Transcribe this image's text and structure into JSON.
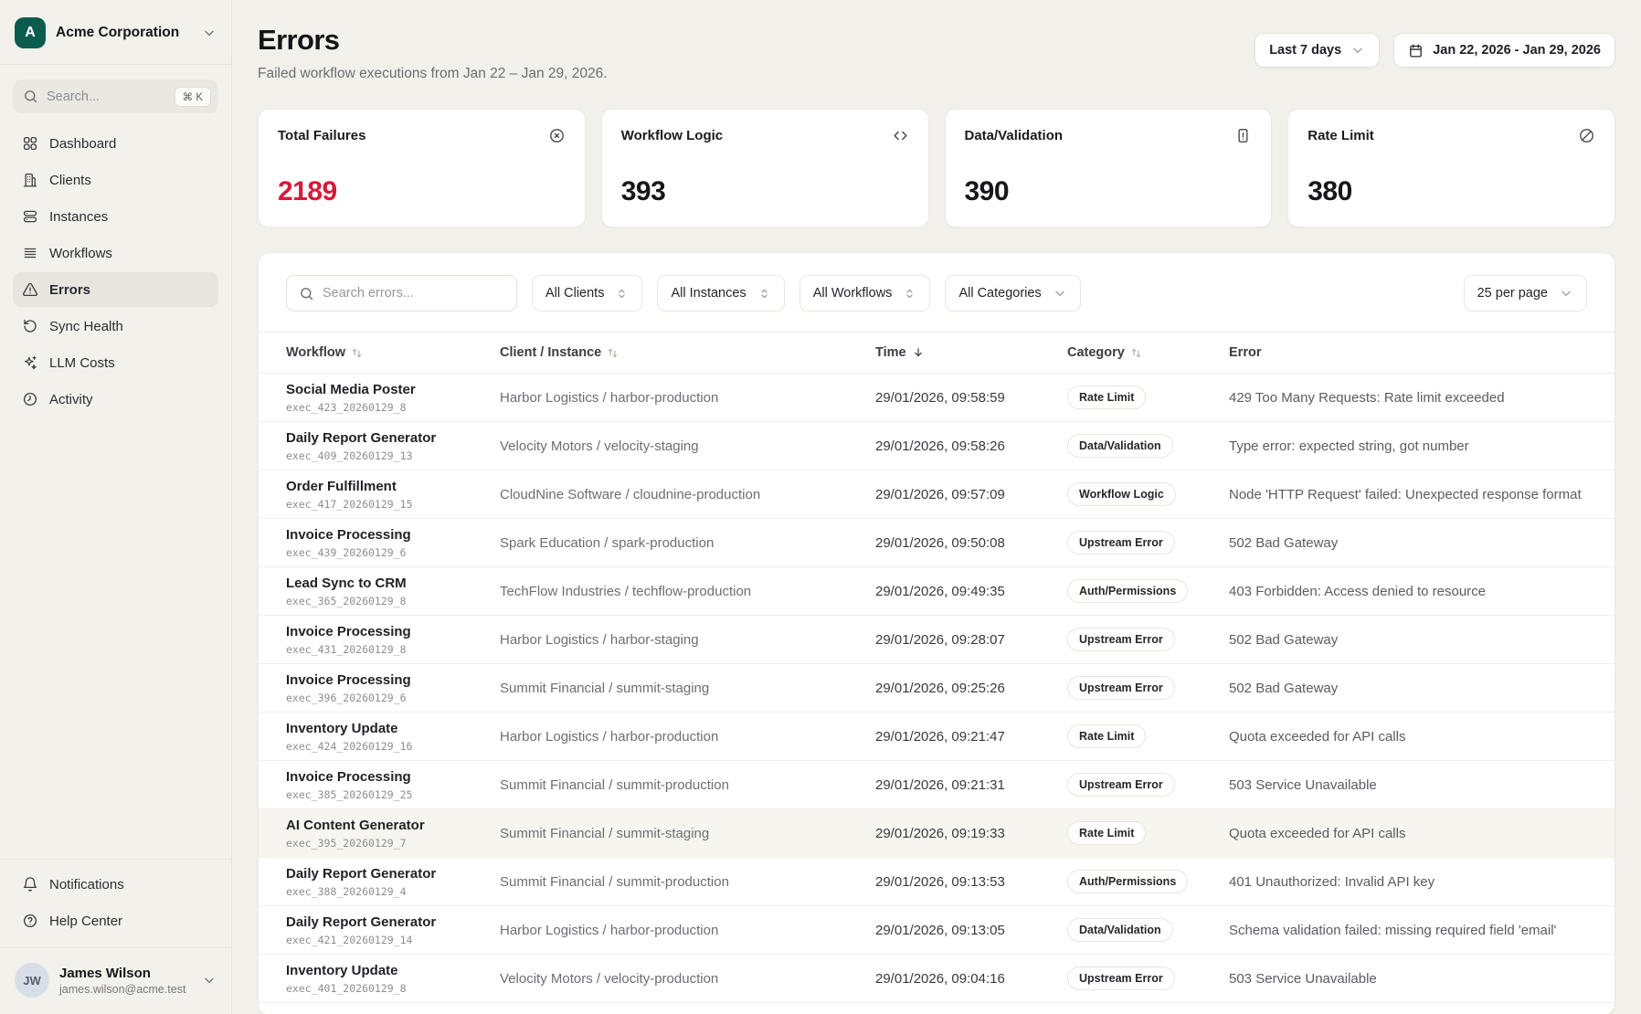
{
  "sidebar": {
    "org": {
      "initial": "A",
      "name": "Acme Corporation"
    },
    "search": {
      "placeholder": "Search...",
      "shortcut": "⌘ K"
    },
    "nav": [
      {
        "label": "Dashboard",
        "icon": "dashboard",
        "active": false
      },
      {
        "label": "Clients",
        "icon": "clients",
        "active": false
      },
      {
        "label": "Instances",
        "icon": "instances",
        "active": false
      },
      {
        "label": "Workflows",
        "icon": "workflows",
        "active": false
      },
      {
        "label": "Errors",
        "icon": "errors",
        "active": true
      },
      {
        "label": "Sync Health",
        "icon": "sync",
        "active": false
      },
      {
        "label": "LLM Costs",
        "icon": "llm",
        "active": false
      },
      {
        "label": "Activity",
        "icon": "activity",
        "active": false
      }
    ],
    "footer": [
      {
        "label": "Notifications",
        "icon": "bell"
      },
      {
        "label": "Help Center",
        "icon": "help"
      }
    ],
    "user": {
      "initials": "JW",
      "name": "James Wilson",
      "email": "james.wilson@acme.test"
    }
  },
  "header": {
    "title": "Errors",
    "subtitle": "Failed workflow executions from Jan 22 – Jan 29, 2026.",
    "range_button": "Last 7 days",
    "date_button": "Jan 22, 2026 - Jan 29, 2026"
  },
  "stats": [
    {
      "label": "Total Failures",
      "value": "2189",
      "icon": "x-circle",
      "accent": "#d61a3b"
    },
    {
      "label": "Workflow Logic",
      "value": "393",
      "icon": "code",
      "accent": null
    },
    {
      "label": "Data/Validation",
      "value": "390",
      "icon": "file-alert",
      "accent": null
    },
    {
      "label": "Rate Limit",
      "value": "380",
      "icon": "slash-circle",
      "accent": null
    }
  ],
  "filters": {
    "search_placeholder": "Search errors...",
    "selects": [
      {
        "label": "All Clients",
        "chevron": "both"
      },
      {
        "label": "All Instances",
        "chevron": "both"
      },
      {
        "label": "All Workflows",
        "chevron": "both"
      },
      {
        "label": "All Categories",
        "chevron": "down"
      }
    ],
    "per_page": "25 per page"
  },
  "table": {
    "columns": [
      {
        "label": "Workflow",
        "sort": "both"
      },
      {
        "label": "Client / Instance",
        "sort": "both"
      },
      {
        "label": "Time",
        "sort": "down"
      },
      {
        "label": "Category",
        "sort": "both"
      },
      {
        "label": "Error",
        "sort": null
      }
    ],
    "rows": [
      {
        "workflow": "Social Media Poster",
        "exec_id": "exec_423_20260129_8",
        "client_instance": "Harbor Logistics / harbor-production",
        "time": "29/01/2026, 09:58:59",
        "category": "Rate Limit",
        "error": "429 Too Many Requests: Rate limit exceeded",
        "highlighted": false
      },
      {
        "workflow": "Daily Report Generator",
        "exec_id": "exec_409_20260129_13",
        "client_instance": "Velocity Motors / velocity-staging",
        "time": "29/01/2026, 09:58:26",
        "category": "Data/Validation",
        "error": "Type error: expected string, got number",
        "highlighted": false
      },
      {
        "workflow": "Order Fulfillment",
        "exec_id": "exec_417_20260129_15",
        "client_instance": "CloudNine Software / cloudnine-production",
        "time": "29/01/2026, 09:57:09",
        "category": "Workflow Logic",
        "error": "Node 'HTTP Request' failed: Unexpected response format",
        "highlighted": false
      },
      {
        "workflow": "Invoice Processing",
        "exec_id": "exec_439_20260129_6",
        "client_instance": "Spark Education / spark-production",
        "time": "29/01/2026, 09:50:08",
        "category": "Upstream Error",
        "error": "502 Bad Gateway",
        "highlighted": false
      },
      {
        "workflow": "Lead Sync to CRM",
        "exec_id": "exec_365_20260129_8",
        "client_instance": "TechFlow Industries / techflow-production",
        "time": "29/01/2026, 09:49:35",
        "category": "Auth/Permissions",
        "error": "403 Forbidden: Access denied to resource",
        "highlighted": false
      },
      {
        "workflow": "Invoice Processing",
        "exec_id": "exec_431_20260129_8",
        "client_instance": "Harbor Logistics / harbor-staging",
        "time": "29/01/2026, 09:28:07",
        "category": "Upstream Error",
        "error": "502 Bad Gateway",
        "highlighted": false
      },
      {
        "workflow": "Invoice Processing",
        "exec_id": "exec_396_20260129_6",
        "client_instance": "Summit Financial / summit-staging",
        "time": "29/01/2026, 09:25:26",
        "category": "Upstream Error",
        "error": "502 Bad Gateway",
        "highlighted": false
      },
      {
        "workflow": "Inventory Update",
        "exec_id": "exec_424_20260129_16",
        "client_instance": "Harbor Logistics / harbor-production",
        "time": "29/01/2026, 09:21:47",
        "category": "Rate Limit",
        "error": "Quota exceeded for API calls",
        "highlighted": false
      },
      {
        "workflow": "Invoice Processing",
        "exec_id": "exec_385_20260129_25",
        "client_instance": "Summit Financial / summit-production",
        "time": "29/01/2026, 09:21:31",
        "category": "Upstream Error",
        "error": "503 Service Unavailable",
        "highlighted": false
      },
      {
        "workflow": "AI Content Generator",
        "exec_id": "exec_395_20260129_7",
        "client_instance": "Summit Financial / summit-staging",
        "time": "29/01/2026, 09:19:33",
        "category": "Rate Limit",
        "error": "Quota exceeded for API calls",
        "highlighted": true
      },
      {
        "workflow": "Daily Report Generator",
        "exec_id": "exec_388_20260129_4",
        "client_instance": "Summit Financial / summit-production",
        "time": "29/01/2026, 09:13:53",
        "category": "Auth/Permissions",
        "error": "401 Unauthorized: Invalid API key",
        "highlighted": false
      },
      {
        "workflow": "Daily Report Generator",
        "exec_id": "exec_421_20260129_14",
        "client_instance": "Harbor Logistics / harbor-production",
        "time": "29/01/2026, 09:13:05",
        "category": "Data/Validation",
        "error": "Schema validation failed: missing required field 'email'",
        "highlighted": false
      },
      {
        "workflow": "Inventory Update",
        "exec_id": "exec_401_20260129_8",
        "client_instance": "Velocity Motors / velocity-production",
        "time": "29/01/2026, 09:04:16",
        "category": "Upstream Error",
        "error": "503 Service Unavailable",
        "highlighted": false
      }
    ]
  }
}
